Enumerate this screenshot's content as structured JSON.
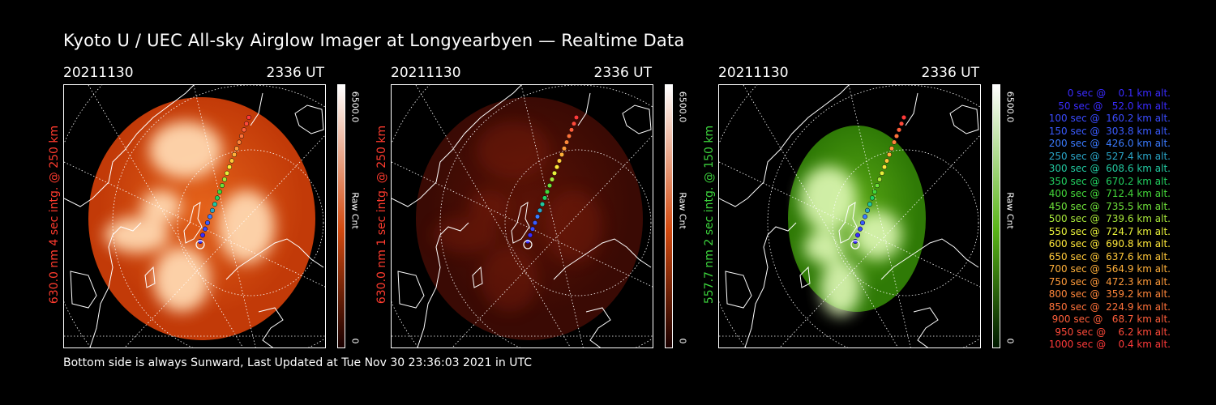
{
  "title": "Kyoto U / UEC All-sky Airglow Imager at Longyearbyen — Realtime Data",
  "footer": "Bottom side is always Sunward, Last Updated at Tue Nov 30 23:36:03 2021 in UTC",
  "colors": {
    "red": "#ff3b2e",
    "green": "#3cd23c"
  },
  "panels": [
    {
      "date": "20211130",
      "time": "2336 UT",
      "side_label": "630.0 nm 4 sec intg. @ 250 km",
      "side_color": "#ff3b2e",
      "cbar_max": "6500.0",
      "cbar_min": "0",
      "cbar_unit": "Raw Cnt",
      "theme": "red-bright"
    },
    {
      "date": "20211130",
      "time": "2336 UT",
      "side_label": "630.0 nm 1 sec intg. @ 250 km",
      "side_color": "#ff3b2e",
      "cbar_max": "6500.0",
      "cbar_min": "0",
      "cbar_unit": "Raw Cnt",
      "theme": "red-dim"
    },
    {
      "date": "20211130",
      "time": "2336 UT",
      "side_label": "557.7 nm 2 sec intg. @ 150 km",
      "side_color": "#3cd23c",
      "cbar_max": "6500.0",
      "cbar_min": "0",
      "cbar_unit": "Raw Cnt",
      "theme": "green"
    }
  ],
  "legend": [
    {
      "text": "0 sec @    0.1 km alt.",
      "color": "#3a2bff"
    },
    {
      "text": "50 sec @   52.0 km alt.",
      "color": "#3a2bff"
    },
    {
      "text": "100 sec @  160.2 km alt.",
      "color": "#3a4bff"
    },
    {
      "text": "150 sec @  303.8 km alt.",
      "color": "#3a5bff"
    },
    {
      "text": "200 sec @  426.0 km alt.",
      "color": "#3a7bff"
    },
    {
      "text": "250 sec @  527.4 km alt.",
      "color": "#2aa6c8"
    },
    {
      "text": "300 sec @  608.6 km alt.",
      "color": "#22c8a0"
    },
    {
      "text": "350 sec @  670.2 km alt.",
      "color": "#22d060"
    },
    {
      "text": "400 sec @  712.4 km alt.",
      "color": "#44d83a"
    },
    {
      "text": "450 sec @  735.5 km alt.",
      "color": "#6ee03a"
    },
    {
      "text": "500 sec @  739.6 km alt.",
      "color": "#a8e83a"
    },
    {
      "text": "550 sec @  724.7 km alt.",
      "color": "#e8f03a"
    },
    {
      "text": "600 sec @  690.8 km alt.",
      "color": "#ffe83a"
    },
    {
      "text": "650 sec @  637.6 km alt.",
      "color": "#ffc83a"
    },
    {
      "text": "700 sec @  564.9 km alt.",
      "color": "#ffb03a"
    },
    {
      "text": "750 sec @  472.3 km alt.",
      "color": "#ff9a3a"
    },
    {
      "text": "800 sec @  359.2 km alt.",
      "color": "#ff863a"
    },
    {
      "text": "850 sec @  224.9 km alt.",
      "color": "#ff723a"
    },
    {
      "text": "900 sec @   68.7 km alt.",
      "color": "#ff5e3a"
    },
    {
      "text": "950 sec @    6.2 km alt.",
      "color": "#ff4a3a"
    },
    {
      "text": "1000 sec @    0.4 km alt.",
      "color": "#ff3a3a"
    }
  ]
}
